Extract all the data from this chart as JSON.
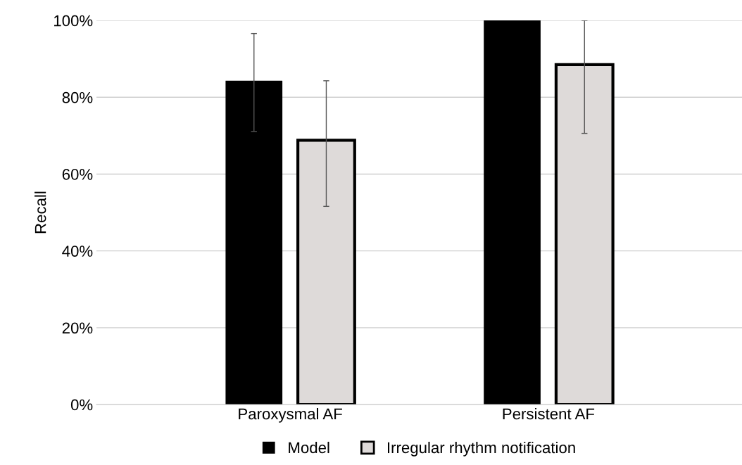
{
  "chart_data": {
    "type": "bar",
    "ylabel": "Recall",
    "categories": [
      "Paroxysmal AF",
      "Persistent AF"
    ],
    "series": [
      {
        "name": "Model",
        "color": "#000000",
        "values": [
          84.3,
          100
        ],
        "errors": [
          [
            71.1,
            96.6
          ],
          null
        ]
      },
      {
        "name": "Irregular rhythm notification",
        "color": "#dedad9",
        "values": [
          68.8,
          88.5
        ],
        "errors": [
          [
            51.6,
            84.3
          ],
          [
            70.6,
            100
          ]
        ]
      }
    ],
    "ylim": [
      0,
      100
    ],
    "yticks": [
      {
        "value": 0,
        "label": "0%"
      },
      {
        "value": 20,
        "label": "20%"
      },
      {
        "value": 40,
        "label": "40%"
      },
      {
        "value": 60,
        "label": "60%"
      },
      {
        "value": 80,
        "label": "80%"
      },
      {
        "value": 100,
        "label": "100%"
      }
    ],
    "grid": "y",
    "legend": "bottom"
  }
}
